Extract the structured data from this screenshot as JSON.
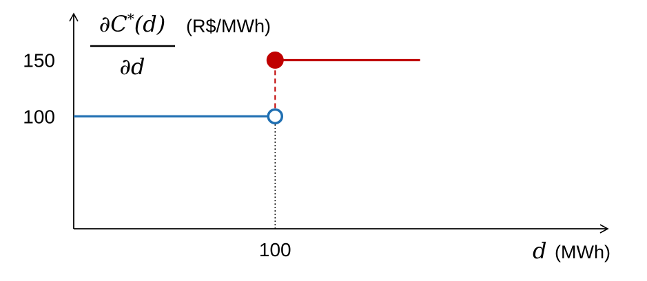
{
  "chart_data": {
    "type": "line",
    "ylabel": {
      "numerator": "∂C*(d)",
      "denominator": "∂d",
      "unit": "(R$/MWh)"
    },
    "xlabel": {
      "symbol": "d",
      "unit": "(MWh)"
    },
    "xlim": [
      0,
      148
    ],
    "ylim": [
      0,
      190
    ],
    "xticks": [
      {
        "value": 100,
        "label": "100"
      }
    ],
    "yticks": [
      {
        "value": 100,
        "label": "100"
      },
      {
        "value": 150,
        "label": "150"
      }
    ],
    "grid": false,
    "legend": "none",
    "series": [
      {
        "segment": "lower",
        "color": "#1f6fb2",
        "x": [
          0,
          100
        ],
        "y": [
          100,
          100
        ],
        "end_marker": "open-circle"
      },
      {
        "segment": "upper",
        "color": "#c00000",
        "x": [
          100,
          172
        ],
        "y": [
          150,
          150
        ],
        "start_marker": "filled-circle"
      }
    ],
    "jump": {
      "x": 100,
      "y_from": 100,
      "y_to": 150,
      "color": "#c00000",
      "style": "dashed"
    },
    "guide": {
      "x": 100,
      "y_from": 0,
      "y_to": 100,
      "color": "#000000",
      "style": "dotted"
    }
  }
}
